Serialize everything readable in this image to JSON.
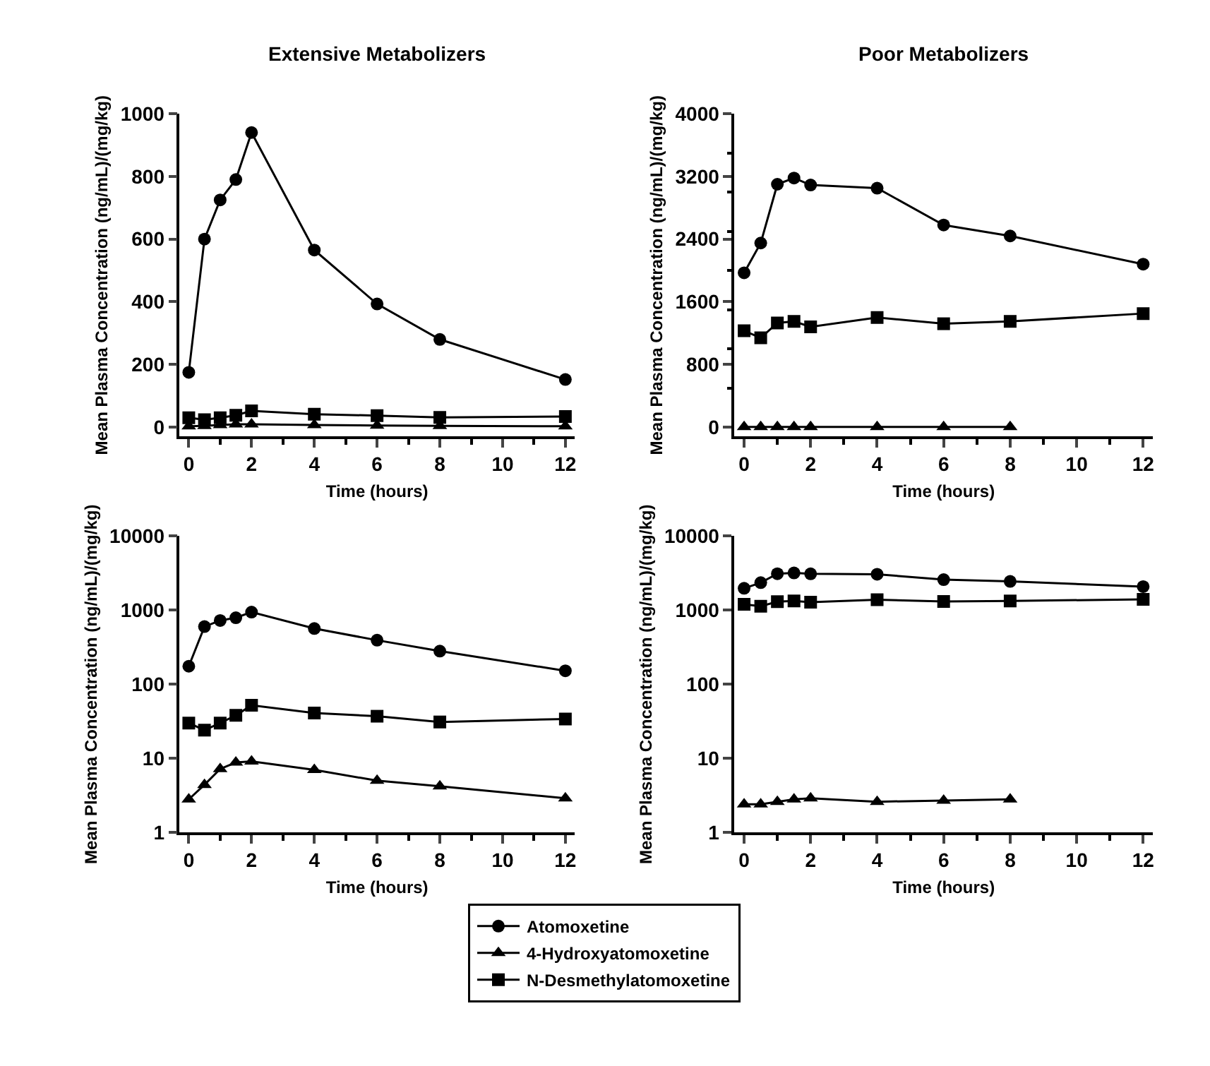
{
  "chart_data": [
    {
      "type": "line",
      "title": "Extensive Metabolizers",
      "xlabel": "Time (hours)",
      "ylabel": "Mean Plasma Concentration (ng/mL)/(mg/kg)",
      "x": [
        0,
        0.5,
        1,
        1.5,
        2,
        4,
        6,
        8,
        12
      ],
      "xlim": [
        -0.3,
        12.3
      ],
      "xticks": [
        0,
        2,
        4,
        6,
        8,
        10,
        12
      ],
      "ylim": [
        -30,
        1000
      ],
      "yticks": [
        0,
        200,
        400,
        600,
        800,
        1000
      ],
      "legend": "bottom",
      "series": [
        {
          "name": "Atomoxetine",
          "color": "#000000",
          "marker": "circle",
          "values": [
            175,
            600,
            725,
            790,
            940,
            565,
            393,
            280,
            152
          ]
        },
        {
          "name": "4-Hydroxyatomoxetine",
          "color": "#000000",
          "marker": "triangle",
          "values": [
            3,
            4,
            7,
            9,
            9,
            7,
            5,
            4,
            3
          ]
        },
        {
          "name": "N-Desmethylatomoxetine",
          "color": "#000000",
          "marker": "square",
          "values": [
            30,
            24,
            30,
            38,
            52,
            41,
            37,
            31,
            34
          ]
        }
      ]
    },
    {
      "type": "line",
      "title": "Poor Metabolizers",
      "xlabel": "Time (hours)",
      "ylabel": "Mean Plasma Concentration (ng/mL)/(mg/kg)",
      "x": [
        0,
        0.5,
        1,
        1.5,
        2,
        4,
        6,
        8,
        12
      ],
      "xlim": [
        -0.3,
        12.3
      ],
      "xticks": [
        0,
        2,
        4,
        6,
        8,
        10,
        12
      ],
      "ylim": [
        -120,
        4000
      ],
      "yticks": [
        0,
        800,
        1600,
        2400,
        3200,
        4000
      ],
      "series": [
        {
          "color": "#000000",
          "marker": "circle",
          "values": [
            1970,
            2350,
            3100,
            3180,
            3090,
            3050,
            2580,
            2440,
            2080
          ]
        },
        {
          "color": "#000000",
          "marker": "triangle",
          "values": [
            3,
            3,
            3,
            3,
            3,
            3,
            3,
            3,
            null
          ]
        },
        {
          "color": "#000000",
          "marker": "square",
          "values": [
            1230,
            1140,
            1330,
            1350,
            1280,
            1400,
            1320,
            1350,
            1450
          ]
        }
      ]
    },
    {
      "type": "line",
      "xlabel": "Time (hours)",
      "ylabel": "Mean Plasma Concentration (ng/mL)/(mg/kg)",
      "x": [
        0,
        0.5,
        1,
        1.5,
        2,
        4,
        6,
        8,
        12
      ],
      "xlim": [
        -0.3,
        12.3
      ],
      "xticks": [
        0,
        2,
        4,
        6,
        8,
        10,
        12
      ],
      "ylim": [
        1,
        10000
      ],
      "yticks": [
        1,
        10,
        100,
        1000,
        10000
      ],
      "log": "y",
      "series": [
        {
          "color": "#000000",
          "marker": "circle",
          "values": [
            175,
            600,
            725,
            790,
            940,
            565,
            393,
            280,
            152
          ]
        },
        {
          "color": "#000000",
          "marker": "triangle",
          "values": [
            2.8,
            4.4,
            7.2,
            8.8,
            9.1,
            7,
            5,
            4.2,
            2.9
          ]
        },
        {
          "color": "#000000",
          "marker": "square",
          "values": [
            30,
            24,
            30,
            38,
            52,
            41,
            37,
            31,
            34
          ]
        }
      ]
    },
    {
      "type": "line",
      "xlabel": "Time (hours)",
      "ylabel": "Mean Plasma Concentration (ng/mL)/(mg/kg)",
      "x": [
        0,
        0.5,
        1,
        1.5,
        2,
        4,
        6,
        8,
        12
      ],
      "xlim": [
        -0.3,
        12.3
      ],
      "xticks": [
        0,
        2,
        4,
        6,
        8,
        10,
        12
      ],
      "ylim": [
        1,
        10000
      ],
      "yticks": [
        1,
        10,
        100,
        1000,
        10000
      ],
      "log": "y",
      "series": [
        {
          "color": "#000000",
          "marker": "circle",
          "values": [
            1970,
            2350,
            3100,
            3180,
            3090,
            3050,
            2580,
            2440,
            2080
          ]
        },
        {
          "color": "#000000",
          "marker": "triangle",
          "values": [
            2.4,
            2.4,
            2.6,
            2.8,
            2.9,
            2.6,
            2.7,
            2.8,
            null
          ]
        },
        {
          "color": "#000000",
          "marker": "square",
          "values": [
            1200,
            1130,
            1300,
            1330,
            1280,
            1380,
            1310,
            1330,
            1400
          ]
        }
      ]
    }
  ]
}
